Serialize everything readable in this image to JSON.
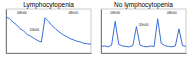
{
  "chart_data": [
    {
      "type": "line",
      "title": "Lymphocytopenia",
      "color": "#3a6fd8",
      "tick_labels": false,
      "xlim": [
        0,
        48
      ],
      "ylim": [
        0,
        100
      ],
      "x": [
        0,
        2,
        4,
        6,
        8,
        10,
        12,
        14,
        16,
        18,
        20,
        22,
        24,
        26,
        28,
        30,
        32,
        34,
        36,
        38,
        40,
        42,
        44,
        46,
        48
      ],
      "values": [
        82,
        78,
        70,
        64,
        55,
        50,
        42,
        38,
        33,
        28,
        25,
        80,
        72,
        62,
        55,
        48,
        42,
        38,
        33,
        30,
        27,
        25,
        22,
        21,
        20
      ],
      "annotations": [
        {
          "text": "08h00",
          "x": 9,
          "y": 88
        },
        {
          "text": "20h00",
          "x": 16,
          "y": 50
        },
        {
          "text": "08h00",
          "x": 38,
          "y": 88
        }
      ]
    },
    {
      "type": "line",
      "title": "No lymphocytopenia",
      "color": "#3a6fd8",
      "tick_labels": false,
      "xlim": [
        0,
        48
      ],
      "ylim": [
        0,
        100
      ],
      "x": [
        0,
        2,
        4,
        6,
        8,
        10,
        12,
        14,
        16,
        18,
        20,
        22,
        24,
        26,
        28,
        30,
        32,
        34,
        36,
        38,
        40,
        42,
        44,
        46,
        48
      ],
      "values": [
        15,
        16,
        14,
        18,
        72,
        20,
        16,
        15,
        14,
        17,
        60,
        18,
        15,
        14,
        16,
        15,
        78,
        22,
        17,
        15,
        14,
        16,
        55,
        17,
        15
      ],
      "annotations": [
        {
          "text": "08h00",
          "x": 8,
          "y": 88
        },
        {
          "text": "20h00",
          "x": 24,
          "y": 62
        },
        {
          "text": "08h00",
          "x": 40,
          "y": 88
        }
      ]
    }
  ]
}
